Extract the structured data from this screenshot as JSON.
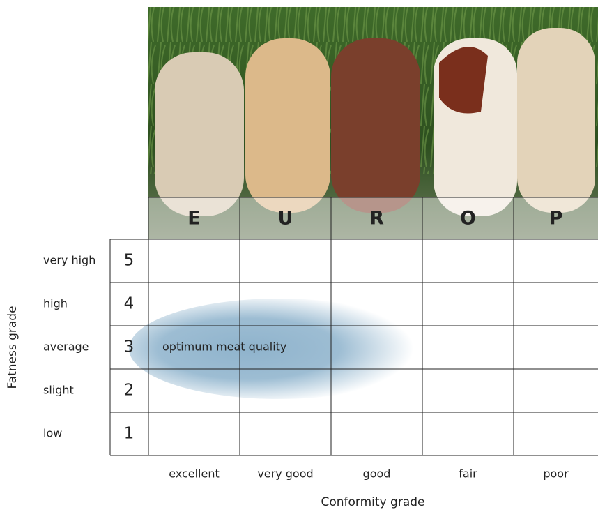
{
  "columns": [
    {
      "letter": "E",
      "label": "excellent"
    },
    {
      "letter": "U",
      "label": "very good"
    },
    {
      "letter": "R",
      "label": "good"
    },
    {
      "letter": "O",
      "label": "fair"
    },
    {
      "letter": "P",
      "label": "poor"
    }
  ],
  "rows": [
    {
      "grade": 5,
      "label": "very high"
    },
    {
      "grade": 4,
      "label": "high"
    },
    {
      "grade": 3,
      "label": "average"
    },
    {
      "grade": 2,
      "label": "slight"
    },
    {
      "grade": 1,
      "label": "low"
    }
  ],
  "annotation": "optimum meat quality",
  "x_axis_title": "Conformity grade",
  "y_axis_title": "Fatness grade"
}
